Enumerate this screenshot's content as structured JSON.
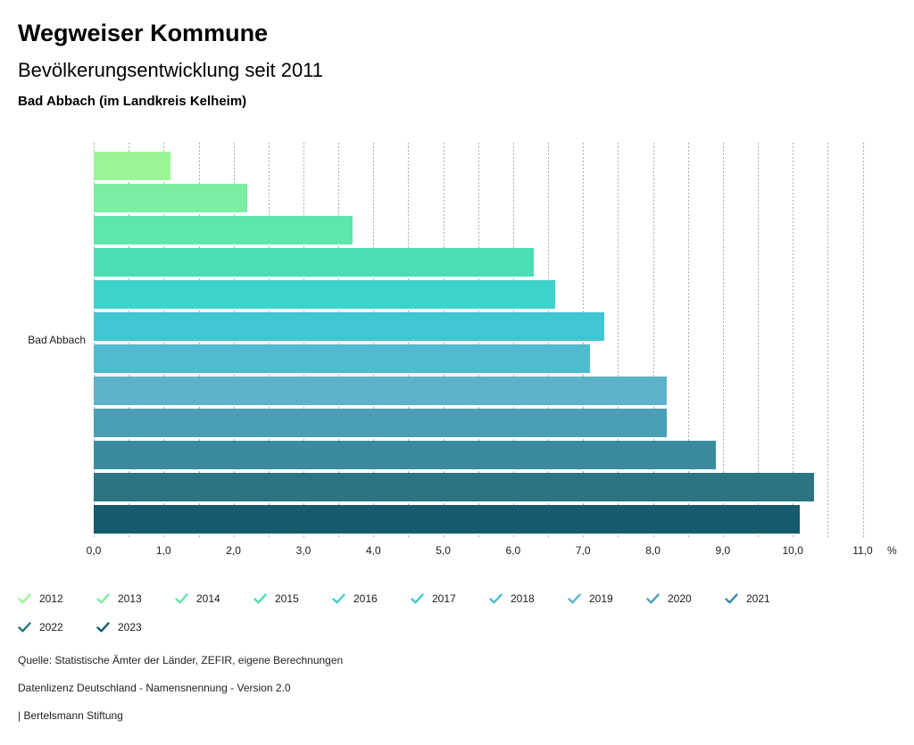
{
  "header": {
    "title": "Wegweiser Kommune",
    "subtitle": "Bevölkerungsentwicklung seit 2011",
    "location": "Bad Abbach (im Landkreis Kelheim)"
  },
  "chart_data": {
    "type": "bar",
    "orientation": "horizontal",
    "category_label": "Bad Abbach",
    "unit_label": "%",
    "xlim": [
      0,
      11.5
    ],
    "gridline_step": 0.5,
    "grid": true,
    "legend_position": "bottom",
    "x_tick_values": [
      0,
      1,
      2,
      3,
      4,
      5,
      6,
      7,
      8,
      9,
      10,
      11
    ],
    "x_tick_labels": [
      "0,0",
      "1,0",
      "2,0",
      "3,0",
      "4,0",
      "5,0",
      "6,0",
      "7,0",
      "8,0",
      "9,0",
      "10,0",
      "11,0"
    ],
    "series": [
      {
        "year": "2012",
        "value": 1.1,
        "color": "#98F598"
      },
      {
        "year": "2013",
        "value": 2.2,
        "color": "#7BEEA3"
      },
      {
        "year": "2014",
        "value": 3.7,
        "color": "#5EE6AB"
      },
      {
        "year": "2015",
        "value": 6.3,
        "color": "#49DEB3"
      },
      {
        "year": "2016",
        "value": 6.6,
        "color": "#3DD2CA"
      },
      {
        "year": "2017",
        "value": 7.3,
        "color": "#40C6D2"
      },
      {
        "year": "2018",
        "value": 7.1,
        "color": "#4EBCCE"
      },
      {
        "year": "2019",
        "value": 8.2,
        "color": "#5CB3C8"
      },
      {
        "year": "2020",
        "value": 8.2,
        "color": "#4A9FB4"
      },
      {
        "year": "2021",
        "value": 8.9,
        "color": "#3A8B9E"
      },
      {
        "year": "2022",
        "value": 10.3,
        "color": "#2A7484"
      },
      {
        "year": "2023",
        "value": 10.1,
        "color": "#165A6D"
      }
    ]
  },
  "footer": {
    "line1": "Quelle: Statistische Ämter der Länder, ZEFIR, eigene Berechnungen",
    "line2": "Datenlizenz Deutschland - Namensnennung - Version 2.0",
    "line3": "| Bertelsmann Stiftung"
  }
}
